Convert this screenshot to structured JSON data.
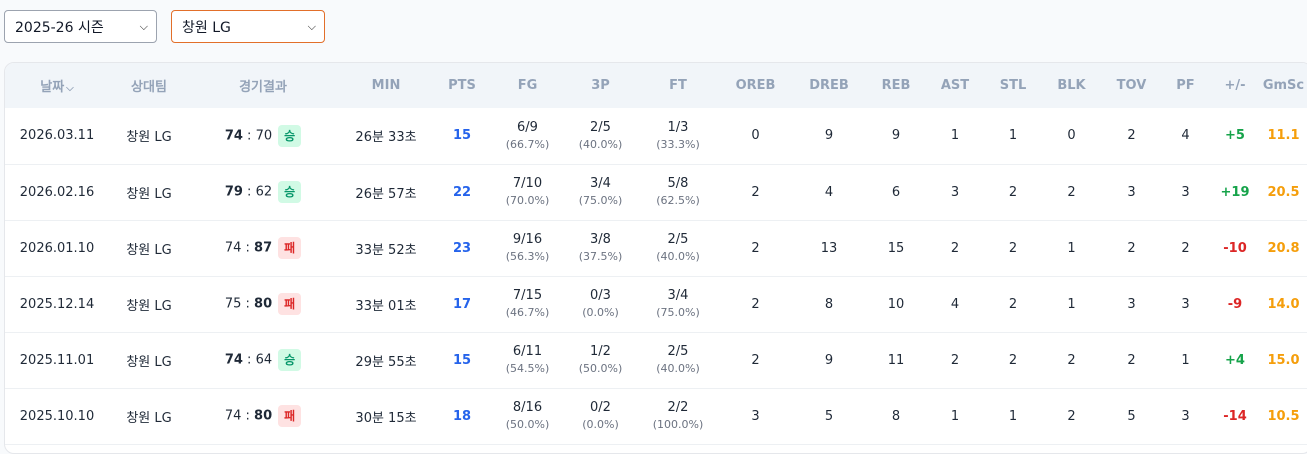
{
  "filters": {
    "season": "2025-26 시즌",
    "team": "창원 LG"
  },
  "columns": [
    "날짜",
    "상대팀",
    "경기결과",
    "MIN",
    "PTS",
    "FG",
    "3P",
    "FT",
    "OREB",
    "DREB",
    "REB",
    "AST",
    "STL",
    "BLK",
    "TOV",
    "PF",
    "+/-",
    "GmSc"
  ],
  "rows": [
    {
      "date": "2026.03.11",
      "opponent": "창원 LG",
      "score_left": "74",
      "score_sep": " : ",
      "score_right": "70",
      "bold_side": "left",
      "result": "승",
      "win": true,
      "min": "26분 33초",
      "pts": "15",
      "fg": "6/9",
      "fg_pct": "(66.7%)",
      "tp": "2/5",
      "tp_pct": "(40.0%)",
      "ft": "1/3",
      "ft_pct": "(33.3%)",
      "oreb": "0",
      "dreb": "9",
      "reb": "9",
      "ast": "1",
      "stl": "1",
      "blk": "0",
      "tov": "2",
      "pf": "4",
      "pm": "+5",
      "gmsc": "11.1"
    },
    {
      "date": "2026.02.16",
      "opponent": "창원 LG",
      "score_left": "79",
      "score_sep": " : ",
      "score_right": "62",
      "bold_side": "left",
      "result": "승",
      "win": true,
      "min": "26분 57초",
      "pts": "22",
      "fg": "7/10",
      "fg_pct": "(70.0%)",
      "tp": "3/4",
      "tp_pct": "(75.0%)",
      "ft": "5/8",
      "ft_pct": "(62.5%)",
      "oreb": "2",
      "dreb": "4",
      "reb": "6",
      "ast": "3",
      "stl": "2",
      "blk": "2",
      "tov": "3",
      "pf": "3",
      "pm": "+19",
      "gmsc": "20.5"
    },
    {
      "date": "2026.01.10",
      "opponent": "창원 LG",
      "score_left": "74",
      "score_sep": " : ",
      "score_right": "87",
      "bold_side": "right",
      "result": "패",
      "win": false,
      "min": "33분 52초",
      "pts": "23",
      "fg": "9/16",
      "fg_pct": "(56.3%)",
      "tp": "3/8",
      "tp_pct": "(37.5%)",
      "ft": "2/5",
      "ft_pct": "(40.0%)",
      "oreb": "2",
      "dreb": "13",
      "reb": "15",
      "ast": "2",
      "stl": "2",
      "blk": "1",
      "tov": "2",
      "pf": "2",
      "pm": "-10",
      "gmsc": "20.8"
    },
    {
      "date": "2025.12.14",
      "opponent": "창원 LG",
      "score_left": "75",
      "score_sep": " : ",
      "score_right": "80",
      "bold_side": "right",
      "result": "패",
      "win": false,
      "min": "33분 01초",
      "pts": "17",
      "fg": "7/15",
      "fg_pct": "(46.7%)",
      "tp": "0/3",
      "tp_pct": "(0.0%)",
      "ft": "3/4",
      "ft_pct": "(75.0%)",
      "oreb": "2",
      "dreb": "8",
      "reb": "10",
      "ast": "4",
      "stl": "2",
      "blk": "1",
      "tov": "3",
      "pf": "3",
      "pm": "-9",
      "gmsc": "14.0"
    },
    {
      "date": "2025.11.01",
      "opponent": "창원 LG",
      "score_left": "74",
      "score_sep": " : ",
      "score_right": "64",
      "bold_side": "left",
      "result": "승",
      "win": true,
      "min": "29분 55초",
      "pts": "15",
      "fg": "6/11",
      "fg_pct": "(54.5%)",
      "tp": "1/2",
      "tp_pct": "(50.0%)",
      "ft": "2/5",
      "ft_pct": "(40.0%)",
      "oreb": "2",
      "dreb": "9",
      "reb": "11",
      "ast": "2",
      "stl": "2",
      "blk": "2",
      "tov": "2",
      "pf": "1",
      "pm": "+4",
      "gmsc": "15.0"
    },
    {
      "date": "2025.10.10",
      "opponent": "창원 LG",
      "score_left": "74",
      "score_sep": " : ",
      "score_right": "80",
      "bold_side": "right",
      "result": "패",
      "win": false,
      "min": "30분 15초",
      "pts": "18",
      "fg": "8/16",
      "fg_pct": "(50.0%)",
      "tp": "0/2",
      "tp_pct": "(0.0%)",
      "ft": "2/2",
      "ft_pct": "(100.0%)",
      "oreb": "3",
      "dreb": "5",
      "reb": "8",
      "ast": "1",
      "stl": "1",
      "blk": "2",
      "tov": "5",
      "pf": "3",
      "pm": "-14",
      "gmsc": "10.5"
    }
  ]
}
